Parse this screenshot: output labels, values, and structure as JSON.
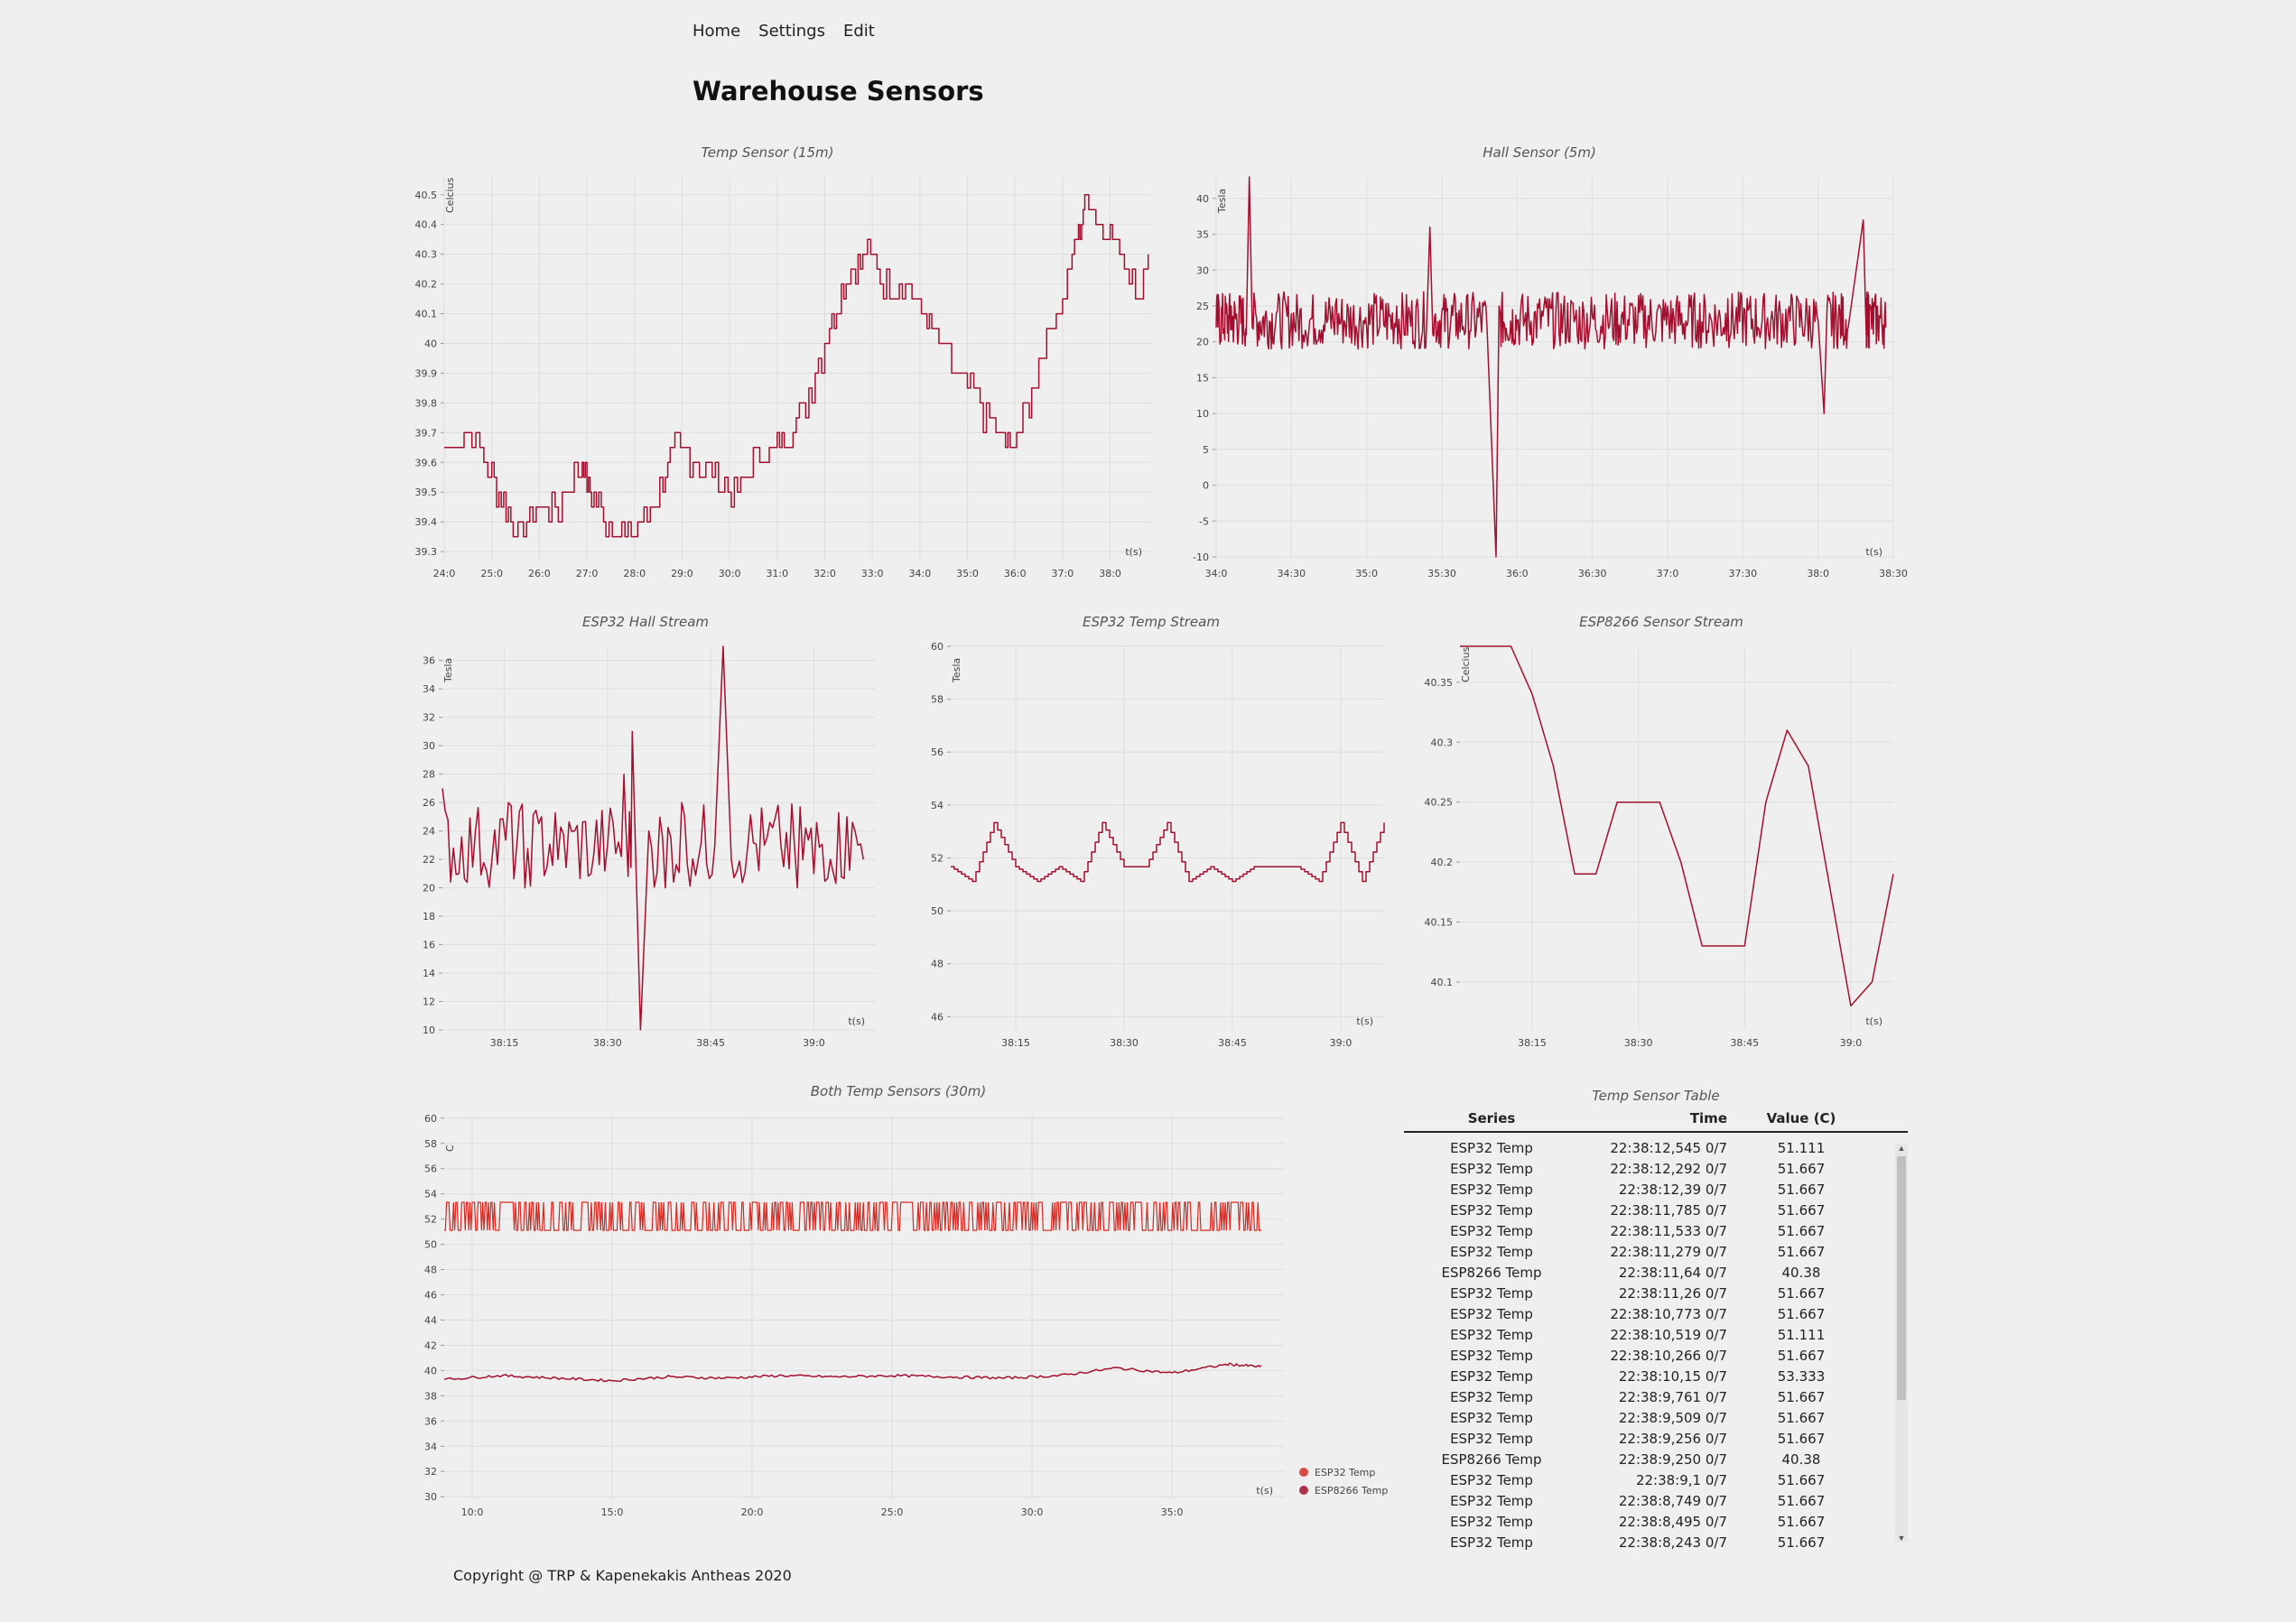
{
  "nav": {
    "home": "Home",
    "settings": "Settings",
    "edit": "Edit"
  },
  "page_title": "Warehouse Sensors",
  "footer": "Copyright @ TRP & Kapenekakis Antheas 2020",
  "colors": {
    "series_primary": "#a3102f",
    "series_secondary": "#d62b24",
    "grid": "#dedede",
    "background": "#efefef"
  },
  "chart_data": [
    {
      "id": "temp",
      "type": "line",
      "title": "Temp Sensor (15m)",
      "ylabel": "Celcius",
      "xlabel": "t(s)",
      "ylim": [
        39.27,
        40.56
      ],
      "xlim": [
        24.0,
        38.9
      ],
      "yticks": [
        39.3,
        39.4,
        39.5,
        39.6,
        39.7,
        39.8,
        39.9,
        40,
        40.1,
        40.2,
        40.3,
        40.4,
        40.5
      ],
      "ytick_labels": [
        "39.3",
        "39.4",
        "39.5",
        "39.6",
        "39.7",
        "39.8",
        "39.9",
        "40",
        "40.1",
        "40.2",
        "40.3",
        "40.4",
        "40.5"
      ],
      "xticks": [
        24,
        25,
        26,
        27,
        28,
        29,
        30,
        31,
        32,
        33,
        34,
        35,
        36,
        37,
        38
      ],
      "xtick_labels": [
        "24:0",
        "25:0",
        "26:0",
        "27:0",
        "28:0",
        "29:0",
        "30:0",
        "31:0",
        "32:0",
        "33:0",
        "34:0",
        "35:0",
        "36:0",
        "37:0",
        "38:0"
      ],
      "series": [
        {
          "x": [
            24.0,
            24.5,
            25.0,
            25.3,
            25.6,
            26.0,
            26.4,
            26.9,
            27.1,
            27.4,
            27.8,
            28.2,
            28.6,
            28.9,
            29.3,
            29.7,
            30.1,
            30.5,
            30.9,
            31.2,
            31.6,
            32.0,
            32.3,
            32.6,
            32.9,
            33.3,
            33.7,
            34.1,
            34.4,
            34.8,
            35.2,
            35.6,
            35.9,
            36.3,
            36.6,
            37.0,
            37.3,
            37.5,
            37.8,
            38.1,
            38.4,
            38.6,
            38.8
          ],
          "values": [
            39.65,
            39.7,
            39.55,
            39.45,
            39.35,
            39.45,
            39.45,
            39.6,
            39.5,
            39.4,
            39.35,
            39.4,
            39.55,
            39.65,
            39.6,
            39.55,
            39.5,
            39.6,
            39.65,
            39.7,
            39.8,
            40.0,
            40.15,
            40.25,
            40.3,
            40.2,
            40.2,
            40.1,
            40.0,
            39.9,
            39.8,
            39.7,
            39.65,
            39.8,
            40.0,
            40.15,
            40.35,
            40.5,
            40.4,
            40.35,
            40.25,
            40.15,
            40.3
          ]
        }
      ]
    },
    {
      "id": "hall",
      "type": "line",
      "title": "Hall Sensor (5m)",
      "ylabel": "Tesla",
      "xlabel": "t(s)",
      "ylim": [
        -10.5,
        43
      ],
      "xlim": [
        34.0,
        38.5
      ],
      "yticks": [
        -10,
        -5,
        0,
        5,
        10,
        15,
        20,
        25,
        30,
        35,
        40
      ],
      "ytick_labels": [
        "-10",
        "-5",
        "0",
        "5",
        "10",
        "15",
        "20",
        "25",
        "30",
        "35",
        "40"
      ],
      "xticks": [
        34,
        34.5,
        35,
        35.5,
        36,
        36.5,
        37,
        37.5,
        38,
        38.5
      ],
      "xtick_labels": [
        "34:0",
        "34:30",
        "35:0",
        "35:30",
        "36:0",
        "36:30",
        "37:0",
        "37:30",
        "38:0",
        "38:30"
      ],
      "series": [
        {
          "x": [
            34.0,
            34.1,
            34.2,
            34.22,
            34.24,
            34.4,
            34.6,
            34.8,
            35.0,
            35.2,
            35.4,
            35.42,
            35.44,
            35.6,
            35.8,
            35.86,
            35.88,
            36.0,
            36.2,
            36.4,
            36.6,
            36.8,
            37.0,
            37.2,
            37.4,
            37.6,
            37.8,
            38.0,
            38.04,
            38.06,
            38.2,
            38.3,
            38.32,
            38.34,
            38.45
          ],
          "values": [
            22,
            25,
            21,
            43,
            22,
            24,
            21,
            26,
            22,
            25,
            23,
            36,
            21,
            24,
            22,
            -10,
            25,
            23,
            26,
            21,
            24,
            22,
            25,
            23,
            26,
            22,
            24,
            23,
            10,
            25,
            22,
            37,
            21,
            24,
            22
          ]
        }
      ]
    },
    {
      "id": "esp32-hall",
      "type": "line",
      "title": "ESP32 Hall Stream",
      "ylabel": "Tesla",
      "xlabel": "t(s)",
      "ylim": [
        10,
        37
      ],
      "xlim": [
        38.1,
        39.15
      ],
      "yticks": [
        10,
        12,
        14,
        16,
        18,
        20,
        22,
        24,
        26,
        28,
        30,
        32,
        34,
        36
      ],
      "ytick_labels": [
        "10",
        "12",
        "14",
        "16",
        "18",
        "20",
        "22",
        "24",
        "26",
        "28",
        "30",
        "32",
        "34",
        "36"
      ],
      "xticks": [
        38.25,
        38.5,
        38.75,
        39.0
      ],
      "xtick_labels": [
        "38:15",
        "38:30",
        "38:45",
        "39:0"
      ],
      "series": [
        {
          "x": [
            38.1,
            38.14,
            38.18,
            38.22,
            38.26,
            38.3,
            38.34,
            38.38,
            38.42,
            38.46,
            38.5,
            38.54,
            38.56,
            38.58,
            38.6,
            38.64,
            38.68,
            38.72,
            38.76,
            38.78,
            38.8,
            38.84,
            38.88,
            38.92,
            38.96,
            39.0,
            39.04,
            39.08,
            39.12
          ],
          "values": [
            27,
            21,
            24,
            22,
            26,
            20,
            25,
            22,
            24,
            21,
            23,
            28,
            31,
            10,
            24,
            20,
            26,
            22,
            23,
            37,
            22,
            23,
            23,
            23,
            20,
            21,
            22,
            25,
            22
          ]
        }
      ]
    },
    {
      "id": "esp32-temp",
      "type": "line",
      "title": "ESP32 Temp Stream",
      "ylabel": "Tesla",
      "xlabel": "t(s)",
      "ylim": [
        45.5,
        60
      ],
      "xlim": [
        38.1,
        39.1
      ],
      "yticks": [
        46,
        48,
        50,
        52,
        54,
        56,
        58,
        60
      ],
      "ytick_labels": [
        "46",
        "48",
        "50",
        "52",
        "54",
        "56",
        "58",
        "60"
      ],
      "xticks": [
        38.25,
        38.5,
        38.75,
        39.0
      ],
      "xtick_labels": [
        "38:15",
        "38:30",
        "38:45",
        "39:0"
      ],
      "series": [
        {
          "x": [
            38.1,
            38.15,
            38.2,
            38.25,
            38.3,
            38.35,
            38.4,
            38.45,
            38.5,
            38.55,
            38.6,
            38.65,
            38.7,
            38.75,
            38.8,
            38.85,
            38.9,
            38.95,
            39.0,
            39.05,
            39.1
          ],
          "values": [
            51.667,
            51.111,
            53.333,
            51.667,
            51.111,
            51.667,
            51.111,
            53.333,
            51.667,
            51.667,
            53.333,
            51.111,
            51.667,
            51.111,
            51.667,
            51.667,
            51.667,
            51.111,
            53.333,
            51.111,
            53.333
          ]
        }
      ]
    },
    {
      "id": "esp8266",
      "type": "line",
      "title": "ESP8266 Sensor Stream",
      "ylabel": "Celcius",
      "xlabel": "t(s)",
      "ylim": [
        40.06,
        40.38
      ],
      "xlim": [
        38.08,
        39.1
      ],
      "yticks": [
        40.1,
        40.15,
        40.2,
        40.25,
        40.3,
        40.35
      ],
      "ytick_labels": [
        "40.1",
        "40.15",
        "40.2",
        "40.25",
        "40.3",
        "40.35"
      ],
      "xticks": [
        38.25,
        38.5,
        38.75,
        39.0
      ],
      "xtick_labels": [
        "38:15",
        "38:30",
        "38:45",
        "39:0"
      ],
      "series": [
        {
          "x": [
            38.08,
            38.15,
            38.2,
            38.25,
            38.3,
            38.35,
            38.4,
            38.45,
            38.5,
            38.55,
            38.6,
            38.65,
            38.7,
            38.75,
            38.8,
            38.85,
            38.9,
            38.95,
            39.0,
            39.05,
            39.1
          ],
          "values": [
            40.38,
            40.38,
            40.38,
            40.34,
            40.28,
            40.19,
            40.19,
            40.25,
            40.25,
            40.25,
            40.2,
            40.13,
            40.13,
            40.13,
            40.25,
            40.31,
            40.28,
            40.18,
            40.08,
            40.1,
            40.19
          ]
        }
      ]
    },
    {
      "id": "both",
      "type": "line",
      "title": "Both Temp Sensors (30m)",
      "ylabel": "C",
      "xlabel": "t(s)",
      "ylim": [
        29.8,
        60.2
      ],
      "xlim": [
        9.0,
        39.0
      ],
      "yticks": [
        30,
        32,
        34,
        36,
        38,
        40,
        42,
        44,
        46,
        48,
        50,
        52,
        54,
        56,
        58,
        60
      ],
      "ytick_labels": [
        "30",
        "32",
        "34",
        "36",
        "38",
        "40",
        "42",
        "44",
        "46",
        "48",
        "50",
        "52",
        "54",
        "56",
        "58",
        "60"
      ],
      "xticks": [
        10,
        15,
        20,
        25,
        30,
        35
      ],
      "xtick_labels": [
        "10:0",
        "15:0",
        "20:0",
        "25:0",
        "30:0",
        "35:0"
      ],
      "legend": "right",
      "series": [
        {
          "name": "ESP32 Temp",
          "band": [
            51.111,
            53.333
          ],
          "xrange": [
            9.0,
            38.2
          ]
        },
        {
          "name": "ESP8266 Temp",
          "x": [
            9.0,
            11.0,
            13.0,
            15.0,
            17.0,
            19.0,
            21.0,
            23.0,
            25.0,
            27.0,
            29.0,
            31.0,
            33.0,
            35.0,
            37.0,
            38.2
          ],
          "values": [
            39.3,
            39.6,
            39.4,
            39.2,
            39.5,
            39.4,
            39.6,
            39.5,
            39.6,
            39.5,
            39.4,
            39.6,
            40.2,
            39.8,
            40.5,
            40.3
          ]
        }
      ]
    }
  ],
  "table": {
    "title": "Temp Sensor Table",
    "columns": [
      "Series",
      "Time",
      "Value (C)"
    ],
    "rows": [
      [
        "ESP32 Temp",
        "22:38:12,545 0/7",
        "51.111"
      ],
      [
        "ESP32 Temp",
        "22:38:12,292 0/7",
        "51.667"
      ],
      [
        "ESP32 Temp",
        "22:38:12,39 0/7",
        "51.667"
      ],
      [
        "ESP32 Temp",
        "22:38:11,785 0/7",
        "51.667"
      ],
      [
        "ESP32 Temp",
        "22:38:11,533 0/7",
        "51.667"
      ],
      [
        "ESP32 Temp",
        "22:38:11,279 0/7",
        "51.667"
      ],
      [
        "ESP8266 Temp",
        "22:38:11,64 0/7",
        "40.38"
      ],
      [
        "ESP32 Temp",
        "22:38:11,26 0/7",
        "51.667"
      ],
      [
        "ESP32 Temp",
        "22:38:10,773 0/7",
        "51.667"
      ],
      [
        "ESP32 Temp",
        "22:38:10,519 0/7",
        "51.111"
      ],
      [
        "ESP32 Temp",
        "22:38:10,266 0/7",
        "51.667"
      ],
      [
        "ESP32 Temp",
        "22:38:10,15 0/7",
        "53.333"
      ],
      [
        "ESP32 Temp",
        "22:38:9,761 0/7",
        "51.667"
      ],
      [
        "ESP32 Temp",
        "22:38:9,509 0/7",
        "51.667"
      ],
      [
        "ESP32 Temp",
        "22:38:9,256 0/7",
        "51.667"
      ],
      [
        "ESP8266 Temp",
        "22:38:9,250 0/7",
        "40.38"
      ],
      [
        "ESP32 Temp",
        "22:38:9,1 0/7",
        "51.667"
      ],
      [
        "ESP32 Temp",
        "22:38:8,749 0/7",
        "51.667"
      ],
      [
        "ESP32 Temp",
        "22:38:8,495 0/7",
        "51.667"
      ],
      [
        "ESP32 Temp",
        "22:38:8,243 0/7",
        "51.667"
      ]
    ]
  }
}
